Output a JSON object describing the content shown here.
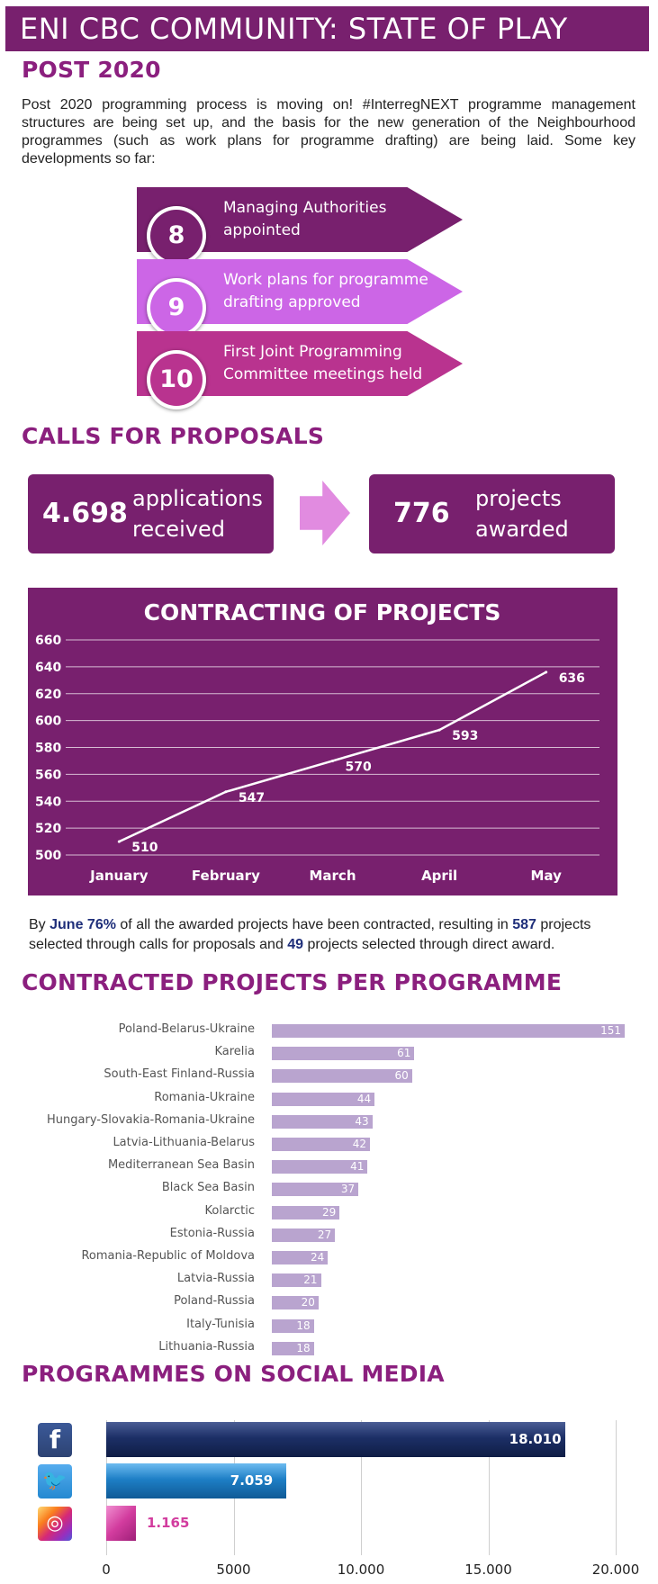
{
  "header": {
    "title": "ENI CBC COMMUNITY: STATE OF PLAY"
  },
  "post2020": {
    "heading": "POST 2020",
    "intro": "Post 2020 programming process is moving on! #InterregNEXT programme management structures are being set up, and the basis for the new generation of the Neighbourhood programmes (such as work plans for programme drafting) are being laid.  Some key developments so far:",
    "stats": [
      {
        "number": "8",
        "line1": "Managing Authorities",
        "line2": "appointed",
        "color": "#78206e"
      },
      {
        "number": "9",
        "line1": "Work plans for programme",
        "line2": "drafting approved",
        "color": "#cc66e6"
      },
      {
        "number": "10",
        "line1": "First Joint Programming",
        "line2": "Committee meetings held",
        "color": "#b9338f"
      }
    ]
  },
  "calls": {
    "heading": "CALLS FOR PROPOSALS",
    "applications": {
      "number": "4.698",
      "line1": "applications",
      "line2": "received"
    },
    "awarded": {
      "number": "776",
      "line1": "projects",
      "line2": "awarded"
    }
  },
  "contracting": {
    "note_pre": "By ",
    "note_month": "June",
    "note_pct": "76%",
    "note_mid1": " of all the awarded projects have been contracted, resulting in ",
    "note_calls": "587",
    "note_mid2": " projects selected through calls for proposals and ",
    "note_direct": "49",
    "note_end": " projects selected through direct award."
  },
  "programmes": {
    "heading": "CONTRACTED PROJECTS PER PROGRAMME"
  },
  "social": {
    "heading": "PROGRAMMES ON SOCIAL MEDIA"
  },
  "chart_data": [
    {
      "type": "line",
      "title": "CONTRACTING OF PROJECTS",
      "categories": [
        "January",
        "February",
        "March",
        "April",
        "May"
      ],
      "values": [
        510,
        547,
        570,
        593,
        636
      ],
      "yticks": [
        "500",
        "520",
        "540",
        "560",
        "580",
        "600",
        "620",
        "640",
        "660"
      ],
      "ylim": [
        500,
        660
      ],
      "grid": true
    },
    {
      "type": "bar",
      "orientation": "horizontal",
      "categories": [
        "Poland-Belarus-Ukraine",
        "Karelia",
        "South-East Finland-Russia",
        "Romania-Ukraine",
        "Hungary-Slovakia-Romania-Ukraine",
        "Latvia-Lithuania-Belarus",
        "Mediterranean Sea Basin",
        "Black Sea Basin",
        "Kolarctic",
        "Estonia-Russia",
        "Romania-Republic of Moldova",
        "Latvia-Russia",
        "Poland-Russia",
        "Italy-Tunisia",
        "Lithuania-Russia"
      ],
      "values": [
        151,
        61,
        60,
        44,
        43,
        42,
        41,
        37,
        29,
        27,
        24,
        21,
        20,
        18,
        18
      ],
      "xlim": [
        0,
        151
      ],
      "bar_color": "#b9a4cf"
    },
    {
      "type": "bar",
      "orientation": "horizontal",
      "categories": [
        "facebook-icon",
        "twitter-icon",
        "instagram-icon"
      ],
      "values": [
        18010,
        7059,
        1165
      ],
      "labels": [
        "18.010",
        "7.059",
        "1.165"
      ],
      "xticks": [
        "0",
        "5000",
        "10.000",
        "15.000",
        "20.000"
      ],
      "xlim": [
        0,
        20000
      ],
      "colors": [
        "#1c2f66",
        "#1e7fc6",
        "#d23c9e"
      ],
      "grid": true
    }
  ]
}
